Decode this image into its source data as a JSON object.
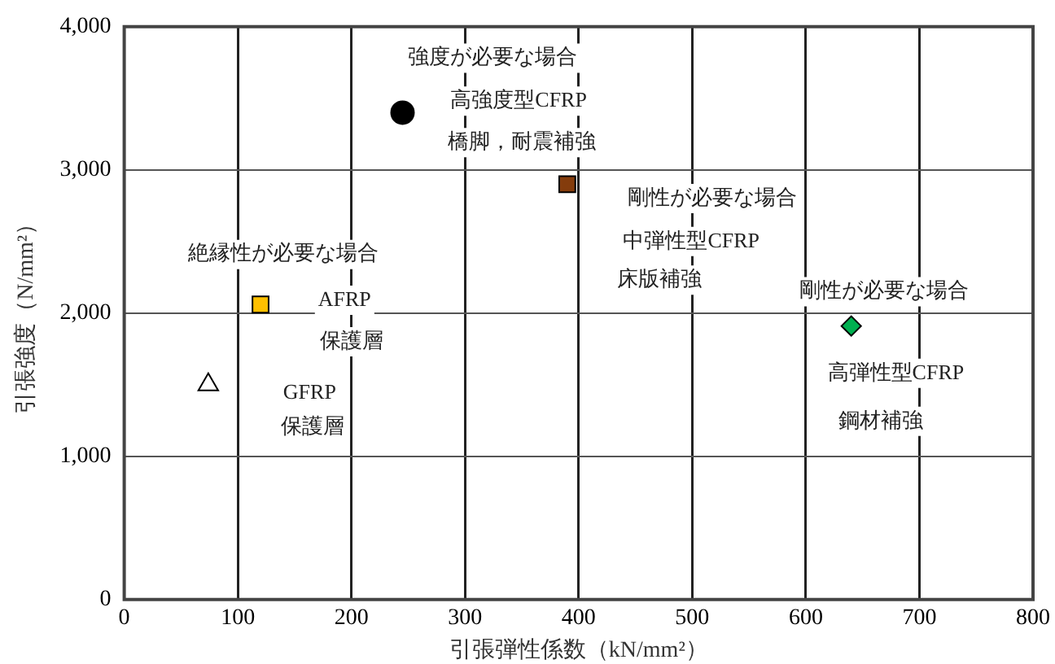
{
  "chart_data": {
    "type": "scatter",
    "xlabel": "引張弾性係数（kN/mm²）",
    "ylabel": "引張強度（N/mm²）",
    "xlim": [
      0,
      800
    ],
    "xticks": [
      0,
      100,
      200,
      300,
      400,
      500,
      600,
      700,
      800
    ],
    "ylim": [
      0,
      4000
    ],
    "yticks": [
      0,
      {
        "value": 1000,
        "label": "1,000"
      },
      {
        "value": 2000,
        "label": "2,000"
      },
      {
        "value": 3000,
        "label": "3,000"
      },
      {
        "value": 4000,
        "label": "4,000"
      }
    ],
    "grid": true,
    "legend": false,
    "series": [
      {
        "marker": "triangle",
        "color": "#ffffff",
        "x": [
          74
        ],
        "values": [
          1500
        ]
      },
      {
        "marker": "square",
        "color": "#ffc000",
        "x": [
          120
        ],
        "values": [
          2060
        ]
      },
      {
        "marker": "circle",
        "color": "#000000",
        "x": [
          245
        ],
        "values": [
          3400
        ]
      },
      {
        "marker": "square",
        "color": "#843c0c",
        "x": [
          390
        ],
        "values": [
          2900
        ]
      },
      {
        "marker": "diamond",
        "color": "#00b050",
        "x": [
          640
        ],
        "values": [
          1910
        ]
      }
    ],
    "annotations": [
      "強度が必要な場合",
      "高強度型CFRP",
      "橋脚，耐震補強",
      "剛性が必要な場合",
      "中弾性型CFRP",
      "床版補強",
      "剛性が必要な場合",
      "高弾性型CFRP",
      "鋼材補強",
      "絶縁性が必要な場合",
      "AFRP",
      "保護層",
      "GFRP",
      "保護層"
    ]
  }
}
